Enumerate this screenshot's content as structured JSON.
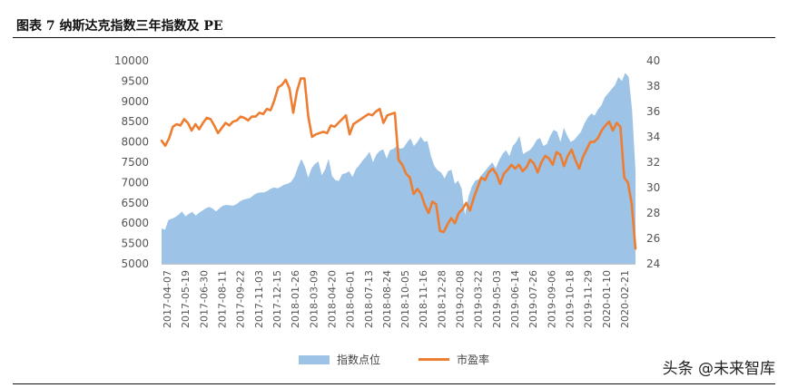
{
  "header": {
    "title": "图表 7 纳斯达克指数三年指数及 PE"
  },
  "watermark": "头条 @未来智库",
  "chart_data": {
    "type": "area",
    "x_labels": [
      "2017-04-07",
      "2017-05-19",
      "2017-06-30",
      "2017-08-11",
      "2017-09-22",
      "2017-11-03",
      "2017-12-15",
      "2018-01-26",
      "2018-03-09",
      "2018-04-20",
      "2018-06-01",
      "2018-07-13",
      "2018-08-24",
      "2018-10-05",
      "2018-11-16",
      "2018-12-28",
      "2019-02-08",
      "2019-03-22",
      "2019-05-03",
      "2019-06-14",
      "2019-07-26",
      "2019-09-06",
      "2019-10-18",
      "2019-11-29",
      "2020-01-10",
      "2020-02-21"
    ],
    "y_left": {
      "ticks": [
        5000,
        5500,
        6000,
        6500,
        7000,
        7500,
        8000,
        8500,
        9000,
        9500,
        10000
      ],
      "range": [
        5000,
        10000
      ]
    },
    "y_right": {
      "ticks": [
        24,
        26,
        28,
        30,
        32,
        34,
        36,
        38,
        40
      ],
      "range": [
        24,
        40
      ]
    },
    "grid": false,
    "legend_position": "bottom",
    "colors": {
      "area": "#9dc3e6",
      "line": "#ed7d31"
    },
    "series": [
      {
        "name": "指数点位",
        "axis": "left",
        "type": "area",
        "values": [
          5870,
          5840,
          6080,
          6110,
          6150,
          6210,
          6290,
          6170,
          6230,
          6280,
          6190,
          6260,
          6310,
          6370,
          6400,
          6360,
          6290,
          6370,
          6430,
          6450,
          6440,
          6430,
          6470,
          6540,
          6580,
          6600,
          6620,
          6690,
          6740,
          6760,
          6760,
          6790,
          6850,
          6880,
          6860,
          6900,
          6950,
          6970,
          7020,
          7150,
          7380,
          7580,
          7400,
          7120,
          7350,
          7460,
          7520,
          7180,
          7330,
          7590,
          7160,
          7060,
          7040,
          7210,
          7230,
          7280,
          7140,
          7340,
          7430,
          7550,
          7640,
          7760,
          7500,
          7690,
          7780,
          7820,
          7590,
          7800,
          7830,
          7900,
          7830,
          7860,
          7990,
          8090,
          7900,
          8000,
          8130,
          8010,
          8020,
          7650,
          7410,
          7300,
          7250,
          7100,
          7280,
          7320,
          6970,
          7050,
          6850,
          6200,
          6650,
          6900,
          7050,
          7080,
          7200,
          7300,
          7400,
          7500,
          7350,
          7550,
          7700,
          7800,
          7650,
          7900,
          8000,
          8150,
          7700,
          7750,
          7800,
          7900,
          8050,
          8100,
          7900,
          7950,
          8150,
          8300,
          8250,
          8000,
          8350,
          8150,
          8000,
          8050,
          8150,
          8250,
          8450,
          8600,
          8700,
          8650,
          8800,
          8900,
          9100,
          9200,
          9300,
          9400,
          9600,
          9500,
          9700,
          9600,
          8800,
          7300
        ]
      },
      {
        "name": "市盈率",
        "axis": "right",
        "type": "line",
        "values": [
          33.7,
          33.3,
          33.9,
          34.8,
          35.0,
          34.9,
          35.4,
          35.1,
          34.5,
          35.0,
          34.6,
          35.1,
          35.5,
          35.4,
          34.9,
          34.3,
          34.7,
          35.1,
          34.9,
          35.2,
          35.3,
          35.6,
          35.5,
          35.3,
          35.6,
          35.6,
          35.9,
          35.8,
          36.2,
          36.1,
          36.9,
          37.9,
          38.1,
          38.5,
          37.8,
          35.9,
          37.6,
          38.6,
          38.6,
          35.6,
          34.0,
          34.2,
          34.3,
          34.4,
          34.3,
          34.9,
          34.8,
          35.1,
          35.4,
          35.7,
          34.2,
          35.0,
          35.2,
          35.4,
          35.6,
          35.8,
          35.7,
          36.0,
          36.2,
          35.1,
          35.7,
          35.8,
          35.9,
          32.2,
          31.8,
          31.1,
          30.8,
          29.5,
          29.9,
          29.5,
          28.6,
          28.0,
          28.9,
          28.7,
          26.6,
          26.5,
          27.1,
          27.6,
          27.2,
          28.0,
          28.3,
          28.8,
          28.2,
          29.2,
          30.0,
          30.8,
          30.6,
          31.2,
          31.5,
          31.1,
          30.3,
          31.1,
          31.4,
          31.8,
          31.5,
          31.8,
          31.3,
          31.6,
          32.2,
          31.9,
          31.2,
          32.0,
          32.5,
          32.3,
          31.8,
          32.8,
          32.6,
          31.7,
          32.5,
          33.0,
          32.2,
          31.5,
          32.4,
          33.0,
          33.6,
          33.6,
          33.9,
          34.5,
          34.9,
          35.2,
          34.5,
          35.1,
          34.8,
          30.8,
          30.4,
          28.7,
          25.2
        ]
      }
    ]
  }
}
